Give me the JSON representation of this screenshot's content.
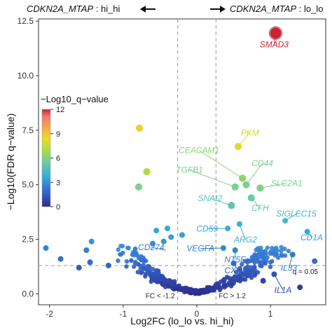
{
  "chart_data": {
    "type": "scatter",
    "xlabel": "Log2FC (lo_lo vs. hi_hi)",
    "ylabel": "−Log10(FDR q−value)",
    "xlim": [
      -2.15,
      1.75
    ],
    "ylim": [
      -0.5,
      12.6
    ],
    "xticks": [
      "-2",
      "-1",
      "0",
      "1"
    ],
    "yticks": [
      "0.0",
      "2.5",
      "5.0",
      "7.5",
      "10.0",
      "12.5"
    ],
    "xtick_values": [
      -2,
      -1,
      0,
      1
    ],
    "ytick_values": [
      0,
      2.5,
      5,
      7.5,
      10,
      12.5
    ],
    "header_left_gene": "CDKN2A_MTAP",
    "header_left_group": " : hi_hi",
    "header_right_gene": "CDKN2A_MTAP",
    "header_right_group": " : lo_lo",
    "fc_threshold": 0.26,
    "q_threshold_y": 1.3,
    "fc_left_label": "FC < -1.2",
    "fc_right_label": "FC > 1.2",
    "q_label": "q = 0.05",
    "legend": {
      "title": "−Log10_q−value",
      "ticks": [
        "12",
        "9",
        "6",
        "3",
        "0"
      ],
      "tick_values": [
        12,
        9,
        6,
        3,
        0
      ],
      "min": 0,
      "max": 12
    },
    "colors": [
      "#2c2c8c",
      "#3366cc",
      "#33aadd",
      "#66ccaa",
      "#aadd44",
      "#eedd22",
      "#f5a347",
      "#f07a7a",
      "#cc2233"
    ],
    "labeled_points": [
      {
        "gene": "SMAD3",
        "x": 1.07,
        "y": 11.95,
        "lx": 1.05,
        "ly": 11.3,
        "anchor": "middle"
      },
      {
        "gene": "PKM",
        "x": 0.56,
        "y": 6.75,
        "lx": 0.72,
        "ly": 7.25,
        "anchor": "middle"
      },
      {
        "gene": "CEACAM1",
        "x": 0.62,
        "y": 5.3,
        "lx": 0.03,
        "ly": 6.45,
        "anchor": "middle"
      },
      {
        "gene": "CD44",
        "x": 0.67,
        "y": 5.0,
        "lx": 0.89,
        "ly": 5.85,
        "anchor": "middle"
      },
      {
        "gene": "TGFB1",
        "x": 0.52,
        "y": 4.9,
        "lx": -0.1,
        "ly": 5.55,
        "anchor": "middle"
      },
      {
        "gene": "SLC2A1",
        "x": 0.86,
        "y": 4.85,
        "lx": 1.22,
        "ly": 4.95,
        "anchor": "middle"
      },
      {
        "gene": "SNAI2",
        "x": 0.47,
        "y": 4.05,
        "lx": 0.18,
        "ly": 4.25,
        "anchor": "middle"
      },
      {
        "gene": "CFH",
        "x": 0.74,
        "y": 4.4,
        "lx": 0.86,
        "ly": 3.8,
        "anchor": "middle"
      },
      {
        "gene": "SIGLEC15",
        "x": 1.2,
        "y": 3.35,
        "lx": 1.35,
        "ly": 3.55,
        "anchor": "middle"
      },
      {
        "gene": "CD59",
        "x": 0.42,
        "y": 3.0,
        "lx": 0.14,
        "ly": 2.85,
        "anchor": "middle"
      },
      {
        "gene": "ARG2",
        "x": 0.58,
        "y": 3.2,
        "lx": 0.66,
        "ly": 2.35,
        "anchor": "middle"
      },
      {
        "gene": "CD1A",
        "x": 1.5,
        "y": 2.85,
        "lx": 1.56,
        "ly": 2.45,
        "anchor": "middle"
      },
      {
        "gene": "CD274",
        "x": -0.42,
        "y": 2.0,
        "lx": -0.62,
        "ly": 2.0,
        "anchor": "middle"
      },
      {
        "gene": "VEGFA",
        "x": 0.36,
        "y": 2.1,
        "lx": 0.05,
        "ly": 1.95,
        "anchor": "middle"
      },
      {
        "gene": "NT5E",
        "x": 0.52,
        "y": 2.0,
        "lx": 0.52,
        "ly": 1.45,
        "anchor": "middle"
      },
      {
        "gene": "IL33",
        "x": 1.3,
        "y": 1.8,
        "lx": 1.25,
        "ly": 1.05,
        "anchor": "middle"
      },
      {
        "gene": "CXCL1",
        "x": 0.5,
        "y": 1.4,
        "lx": 0.56,
        "ly": 0.95,
        "anchor": "middle"
      },
      {
        "gene": "IL1A",
        "x": 1.05,
        "y": 0.9,
        "lx": 1.17,
        "ly": 0.05,
        "anchor": "middle"
      }
    ],
    "highlight_points": [
      {
        "x": 1.07,
        "y": 11.95,
        "q": 12
      },
      {
        "x": 0.56,
        "y": 6.75,
        "q": 7.2
      },
      {
        "x": -0.78,
        "y": 7.6,
        "q": 7.8
      },
      {
        "x": -0.68,
        "y": 5.6,
        "q": 6.2
      },
      {
        "x": -0.79,
        "y": 4.9,
        "q": 5.0
      },
      {
        "x": 0.62,
        "y": 5.3,
        "q": 5.4
      },
      {
        "x": 0.86,
        "y": 4.85,
        "q": 5.0
      },
      {
        "x": 0.67,
        "y": 5.0,
        "q": 5.0
      },
      {
        "x": 0.52,
        "y": 4.9,
        "q": 5.0
      },
      {
        "x": 0.47,
        "y": 4.05,
        "q": 4.3
      },
      {
        "x": 0.74,
        "y": 4.4,
        "q": 4.5
      },
      {
        "x": 1.2,
        "y": 3.35,
        "q": 3.6
      },
      {
        "x": 0.42,
        "y": 3.0,
        "q": 3.2
      },
      {
        "x": 0.58,
        "y": 3.2,
        "q": 3.3
      },
      {
        "x": 1.5,
        "y": 2.85,
        "q": 3.0
      },
      {
        "x": 0.36,
        "y": 2.1,
        "q": 2.3
      },
      {
        "x": 0.52,
        "y": 2.0,
        "q": 2.2
      },
      {
        "x": 1.3,
        "y": 1.8,
        "q": 2.0
      },
      {
        "x": 0.5,
        "y": 1.4,
        "q": 1.6
      },
      {
        "x": 1.05,
        "y": 0.9,
        "q": 1.0
      },
      {
        "x": -2.05,
        "y": 2.1,
        "q": 2.2
      },
      {
        "x": -1.85,
        "y": 1.6,
        "q": 1.7
      },
      {
        "x": -1.6,
        "y": 1.2,
        "q": 1.3
      },
      {
        "x": -1.45,
        "y": 1.45,
        "q": 1.6
      },
      {
        "x": -1.43,
        "y": 2.4,
        "q": 2.5
      },
      {
        "x": -1.5,
        "y": 2.0,
        "q": 2.1
      },
      {
        "x": -1.2,
        "y": 1.3,
        "q": 1.5
      },
      {
        "x": -0.55,
        "y": 2.9,
        "q": 3.0
      },
      {
        "x": -0.4,
        "y": 3.0,
        "q": 3.0
      },
      {
        "x": -0.35,
        "y": 2.6,
        "q": 2.8
      },
      {
        "x": -0.2,
        "y": 2.7,
        "q": 2.8
      },
      {
        "x": -0.6,
        "y": 2.3,
        "q": 2.4
      },
      {
        "x": -0.45,
        "y": 2.4,
        "q": 2.6
      },
      {
        "x": 1.6,
        "y": 1.5,
        "q": 1.6
      },
      {
        "x": 1.4,
        "y": 0.3,
        "q": 0.5
      },
      {
        "x": 0.9,
        "y": 0.6,
        "q": 0.7
      }
    ]
  }
}
